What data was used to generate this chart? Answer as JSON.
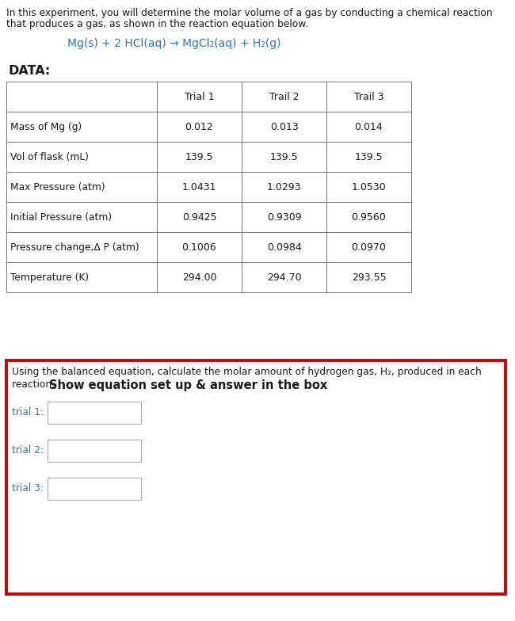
{
  "intro_text_line1": "In this experiment, you will determine the molar volume of a gas by conducting a chemical reaction",
  "intro_text_line2": "that produces a gas, as shown in the reaction equation below.",
  "equation": "Mg(s) + 2 HCl(aq) → MgCl₂(aq) + H₂(g)",
  "data_label": "DATA:",
  "col_headers": [
    "",
    "Trial 1",
    "Trail 2",
    "Trail 3"
  ],
  "row_labels": [
    "Mass of Mg (g)",
    "Vol of flask (mL)",
    "Max Pressure (atm)",
    "Initial Pressure (atm)",
    "Pressure change,Δ P (atm)",
    "Temperature (K)"
  ],
  "table_data": [
    [
      "0.012",
      "0.013",
      "0.014"
    ],
    [
      "139.5",
      "139.5",
      "139.5"
    ],
    [
      "1.0431",
      "1.0293",
      "1.0530"
    ],
    [
      "0.9425",
      "0.9309",
      "0.9560"
    ],
    [
      "0.1006",
      "0.0984",
      "0.0970"
    ],
    [
      "294.00",
      "294.70",
      "293.55"
    ]
  ],
  "question_text_line1": "Using the balanced equation, calculate the molar amount of hydrogen gas, H₂, produced in each",
  "question_text_line2_normal": "reaction.  ",
  "question_text_line2_bold": "Show equation set up & answer in the box",
  "trial_labels": [
    "trial 1:",
    "trial 2:",
    "trial 3:"
  ],
  "intro_color": "#1a1a1a",
  "equation_color": "#2e75b6",
  "data_label_color": "#1a1a1a",
  "table_text_color": "#1a1a1a",
  "question_color": "#1a1a1a",
  "bold_color": "#1a1a1a",
  "red_border_color": "#cc0000",
  "trial_label_color": "#2e75b6",
  "bg_color": "#ffffff",
  "table_line_color": "#777777"
}
